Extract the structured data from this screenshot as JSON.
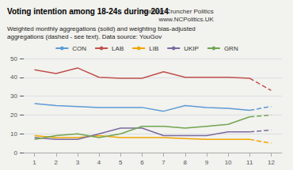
{
  "chart_data": {
    "type": "line",
    "title": "Voting intention among 18-24s during 2014",
    "subtitle": "Weighted monthly aggregations (solid) and weighting bias-adjusted\naggregations (dashed - see text). Data source: YouGov",
    "annotations": [
      "Number Cruncher Politics\nwww.NCPolitics.UK"
    ],
    "x": [
      1,
      2,
      3,
      4,
      5,
      6,
      7,
      8,
      9,
      10,
      11,
      12
    ],
    "xlim": [
      0.5,
      12.5
    ],
    "xticks": [
      1,
      2,
      3,
      4,
      5,
      6,
      7,
      8,
      9,
      10,
      11,
      12
    ],
    "ylim": [
      0,
      50
    ],
    "yticks": [
      0,
      10,
      20,
      30,
      40,
      50
    ],
    "grid": true,
    "legend": "top",
    "series": [
      {
        "name": "CON",
        "color": "#5b9bd5",
        "line_style": "solid",
        "values": [
          26,
          25,
          24.5,
          24,
          24,
          24,
          22,
          25,
          24,
          23.5,
          22.5,
          null
        ]
      },
      {
        "name": "CON",
        "color": "#5b9bd5",
        "line_style": "dashed",
        "values": [
          null,
          null,
          null,
          null,
          null,
          null,
          null,
          null,
          null,
          null,
          22.5,
          24.5
        ]
      },
      {
        "name": "LAB",
        "color": "#c0504d",
        "line_style": "solid",
        "values": [
          44,
          42,
          45,
          40,
          39.5,
          39.5,
          43,
          40,
          40,
          40,
          39.5,
          null
        ]
      },
      {
        "name": "LAB",
        "color": "#c0504d",
        "line_style": "dashed",
        "values": [
          null,
          null,
          null,
          null,
          null,
          null,
          null,
          null,
          null,
          null,
          39.5,
          33
        ]
      },
      {
        "name": "LIB",
        "color": "#f0a500",
        "line_style": "solid",
        "values": [
          9,
          8,
          8,
          9,
          8,
          8,
          8,
          7.5,
          7,
          7,
          7,
          null
        ]
      },
      {
        "name": "LIB",
        "color": "#f0a500",
        "line_style": "dashed",
        "values": [
          null,
          null,
          null,
          null,
          null,
          null,
          null,
          null,
          null,
          null,
          7,
          5
        ]
      },
      {
        "name": "UKIP",
        "color": "#7b6ba0",
        "line_style": "solid",
        "values": [
          8,
          7,
          7,
          10,
          13,
          13,
          9,
          9,
          9,
          11,
          11,
          null
        ]
      },
      {
        "name": "UKIP",
        "color": "#7b6ba0",
        "line_style": "dashed",
        "values": [
          null,
          null,
          null,
          null,
          null,
          null,
          null,
          null,
          null,
          null,
          11,
          12
        ]
      },
      {
        "name": "GRN",
        "color": "#70a550",
        "line_style": "solid",
        "values": [
          7,
          9,
          10,
          8,
          10,
          14,
          14,
          13,
          14,
          15,
          19,
          null
        ]
      },
      {
        "name": "GRN",
        "color": "#70a550",
        "line_style": "dashed",
        "values": [
          null,
          null,
          null,
          null,
          null,
          null,
          null,
          null,
          null,
          null,
          19,
          20
        ]
      }
    ]
  }
}
